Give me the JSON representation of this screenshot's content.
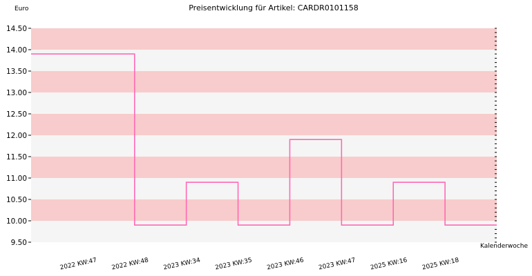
{
  "chart_data": {
    "type": "line",
    "step": true,
    "title": "Preisentwicklung für Artikel: CARDR0101158",
    "ylabel": "Euro",
    "xlabel": "Kalenderwoche",
    "ylim": [
      9.5,
      14.5
    ],
    "y_ticks": [
      "9.50",
      "10.00",
      "10.50",
      "11.00",
      "11.50",
      "12.00",
      "12.50",
      "13.00",
      "13.50",
      "14.00",
      "14.50"
    ],
    "categories": [
      "2022 KW:47",
      "2022 KW:48",
      "2023 KW:34",
      "2023 KW:35",
      "2023 KW:46",
      "2023 KW:47",
      "2025 KW:16",
      "2025 KW:18"
    ],
    "series": [
      {
        "values": [
          13.9,
          9.9,
          10.9,
          9.9,
          11.9,
          9.9,
          10.9,
          9.9
        ]
      }
    ],
    "colors": {
      "line": "#ff69b4",
      "band_pink": "#f8cccc",
      "band_light": "#f5f5f5"
    },
    "grid": true,
    "legend": "none"
  }
}
